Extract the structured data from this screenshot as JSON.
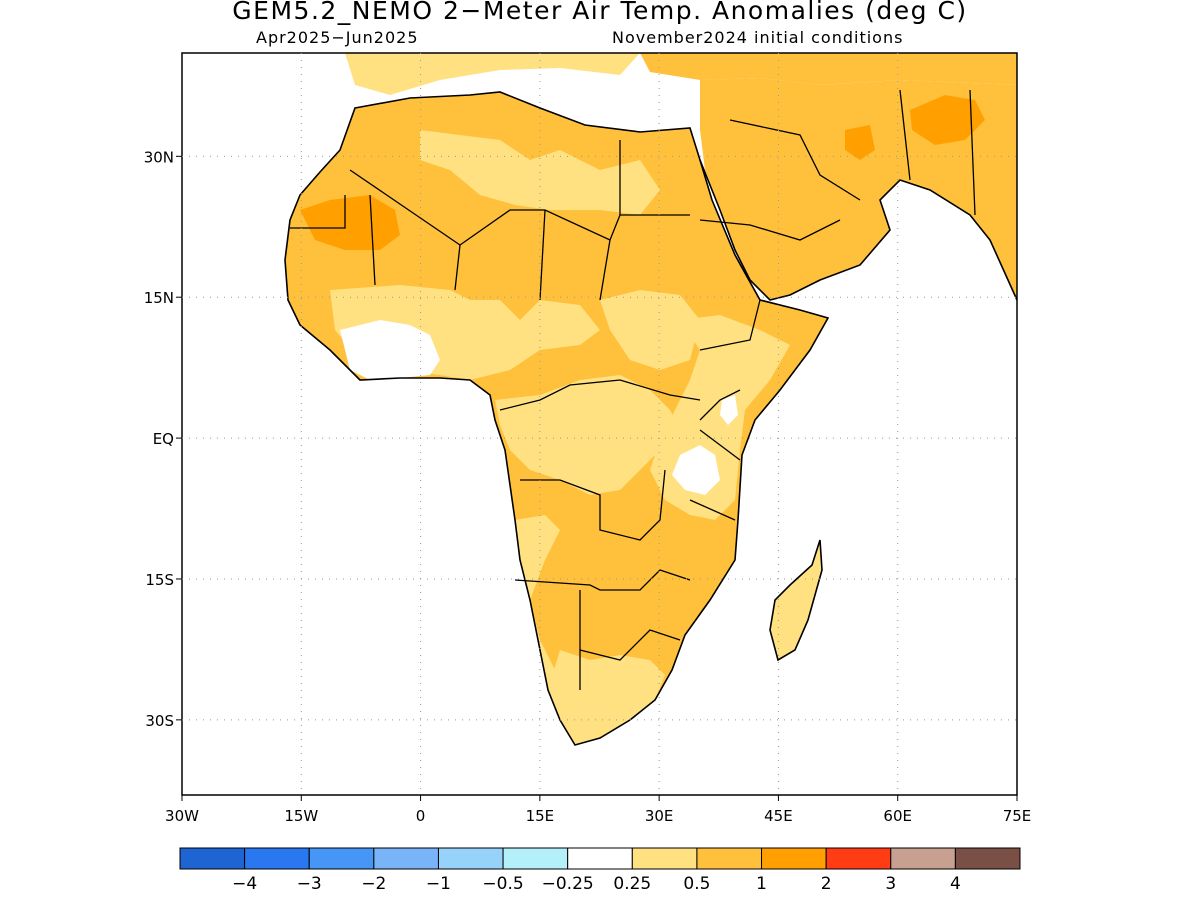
{
  "title": "GEM5.2_NEMO 2−Meter Air Temp. Anomalies (deg C)",
  "subtitle_left": "Apr2025−Jun2025",
  "subtitle_right": "November2024 initial conditions",
  "map": {
    "region": "Africa and Arabian Peninsula",
    "lon_range": [
      -30,
      75
    ],
    "lat_range": [
      -38,
      41
    ],
    "grid": "dotted",
    "x_ticks": [
      "30W",
      "15W",
      "0",
      "15E",
      "30E",
      "45E",
      "60E",
      "75E"
    ],
    "y_ticks": [
      "30N",
      "15N",
      "EQ",
      "15S",
      "30S"
    ],
    "anomaly_regions": [
      {
        "area": "Western Sahara / Mauritania",
        "category": "1 to 2"
      },
      {
        "area": "Saharan interior",
        "category": "0.5 to 1"
      },
      {
        "area": "Central Sahara (Algeria/Libya east)",
        "category": "0.25 to 0.5"
      },
      {
        "area": "Gulf of Guinea coast (Ivory Coast/Ghana)",
        "category": "-0.25 to 0.25"
      },
      {
        "area": "Nigeria / Central Africa",
        "category": "0.25 to 0.5"
      },
      {
        "area": "Sudan / Chad / Ethiopia",
        "category": "0.5 to 1"
      },
      {
        "area": "East Africa highlands (Kenya/Tanzania)",
        "category": "-0.25 to 0.25"
      },
      {
        "area": "Angola / Zambia / Namibia / Botswana",
        "category": "0.5 to 1"
      },
      {
        "area": "South Africa",
        "category": "0.25 to 0.5"
      },
      {
        "area": "Madagascar",
        "category": "0.25 to 0.5"
      },
      {
        "area": "Arabian Peninsula",
        "category": "0.5 to 1"
      },
      {
        "area": "Iran / Afghanistan / Pakistan",
        "category": "0.5 to 1"
      }
    ]
  },
  "colorbar": {
    "labels": [
      "−4",
      "−3",
      "−2",
      "−1",
      "−0.5",
      "−0.25",
      "0.25",
      "0.5",
      "1",
      "2",
      "3",
      "4"
    ],
    "colors": [
      "#1e64d2",
      "#2a78f0",
      "#4696f5",
      "#7ab4f8",
      "#96d2fa",
      "#b4f0fa",
      "#ffffff",
      "#ffe182",
      "#ffc03c",
      "#ffa000",
      "#ff3c14",
      "#c8a092",
      "#7a5046"
    ]
  }
}
